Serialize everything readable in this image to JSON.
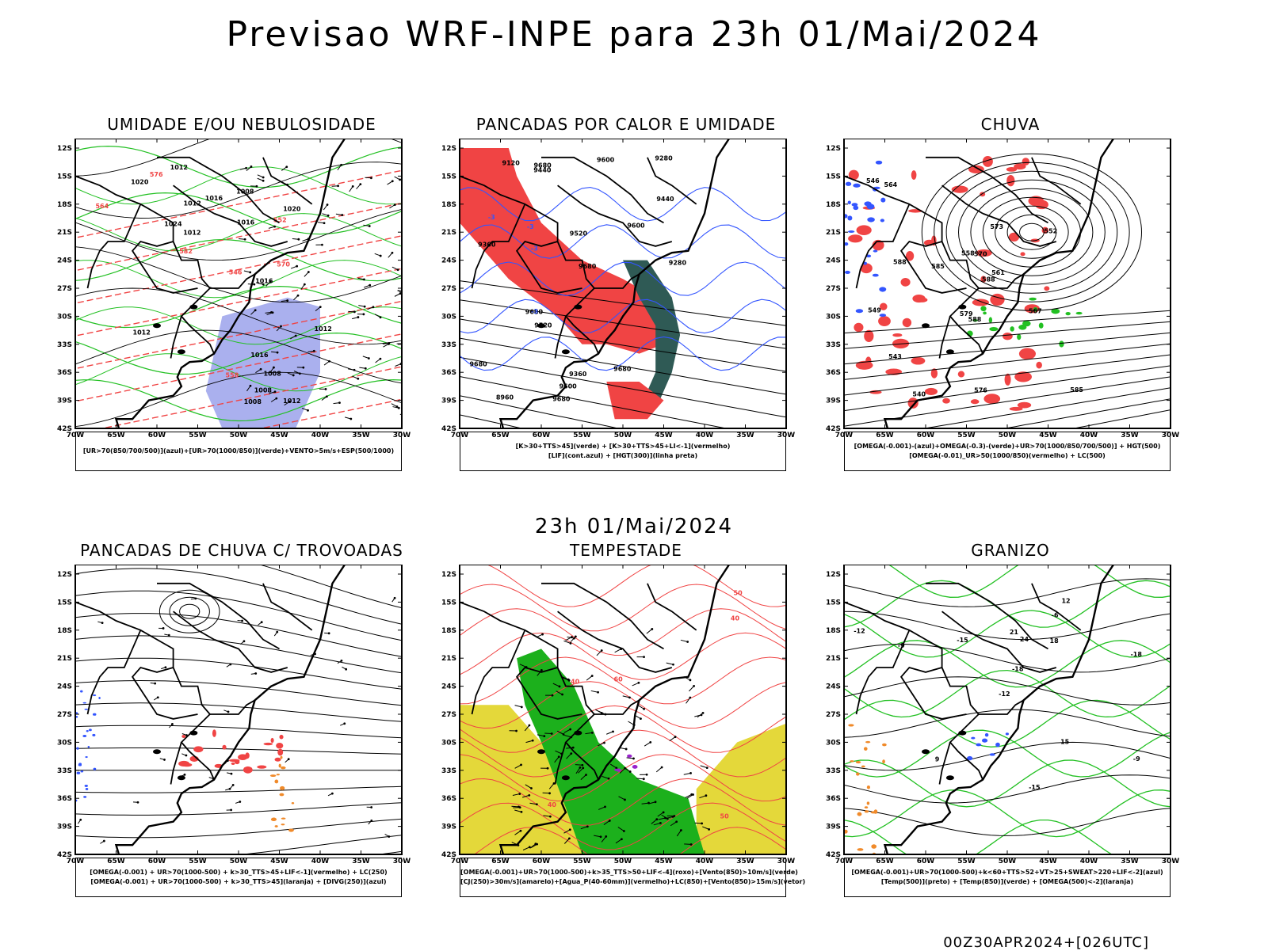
{
  "title": "Previsao WRF-INPE  para 23h 01/Mai/2024",
  "mid_date": "23h 01/Mai/2024",
  "footer": "00Z30APR2024+[026UTC]",
  "lat_ticks": [
    "12S",
    "15S",
    "18S",
    "21S",
    "24S",
    "27S",
    "30S",
    "33S",
    "36S",
    "39S",
    "42S"
  ],
  "lon_ticks": [
    "70W",
    "65W",
    "60W",
    "55W",
    "50W",
    "45W",
    "40W",
    "35W",
    "30W"
  ],
  "colors": {
    "green": "#22c022",
    "red": "#f04444",
    "blue": "#3355ff",
    "lavender": "#aab0ee",
    "dark_teal": "#2f5a55",
    "yellow": "#e4d83a",
    "orange": "#f08a2a",
    "purple": "#9922cc"
  },
  "panels": [
    {
      "id": "umidade",
      "title": "UMIDADE E/OU NEBULOSIDADE",
      "legend": [
        "[UR>70(850/700/500)](azul)+[UR>70(1000/850)](verde)+VENTO>5m/s+ESP(500/1000)"
      ],
      "contour_labels": [
        "1012",
        "1012",
        "1012",
        "1016",
        "1016",
        "1008",
        "1012",
        "1016",
        "1020",
        "1008",
        "1008",
        "1012",
        "1016",
        "1020",
        "1024",
        "1012",
        "1008",
        "546",
        "552",
        "558",
        "564",
        "570",
        "576",
        "582"
      ]
    },
    {
      "id": "pancadas_calor",
      "title": "PANCADAS POR CALOR E UMIDADE",
      "legend": [
        "[K>30+TTS>45](verde) + [K>30+TTS>45+LI<-1](vermelho)",
        "[LIF](cont.azul) + [HGT(300)](linha preta)"
      ],
      "contour_labels": [
        "9680",
        "9680",
        "9680",
        "9680",
        "9680",
        "9680",
        "9600",
        "9600",
        "9520",
        "9440",
        "9360",
        "9280",
        "9120",
        "8960",
        "9600",
        "9520",
        "9440",
        "9360",
        "9280",
        "-3",
        "-3",
        "-3",
        "-3"
      ]
    },
    {
      "id": "chuva",
      "title": "CHUVA",
      "legend": [
        "[OMEGA(-0.001)-(azul)+OMEGA(-0.3)-(verde)+UR>70(1000/850/700/500)] + HGT(500)",
        "[OMEGA(-0.01)_UR>50(1000/850)(vermelho) + LC(500)"
      ],
      "contour_labels": [
        "588",
        "588",
        "588",
        "585",
        "585",
        "579",
        "576",
        "573",
        "570",
        "567",
        "564",
        "561",
        "558",
        "552",
        "549",
        "546",
        "543",
        "540"
      ]
    },
    {
      "id": "pancadas_trovoadas",
      "title": "PANCADAS DE CHUVA C/ TROVOADAS",
      "legend": [
        "[OMEGA(-0.001) + UR>70(1000-500) + k>30_TTS>45+LIF<-1](vermelho) + LC(250)",
        "[OMEGA(-0.001) + UR>70(1000-500) + k>30_TTS>45](laranja) + [DIVG(250)](azul)"
      ],
      "contour_labels": []
    },
    {
      "id": "tempestade",
      "title": "TEMPESTADE",
      "legend": [
        "[OMEGA(-0.001)+UR>70(1000-500)+k>35_TTS>50+LIF<-4](roxo)+[Vento(850)>10m/s](verde)",
        "[CJ(250)>30m/s](amarelo)+[Agua_P(40-60mm)](vermelho)+LC(850)+[Vento(850)>15m/s](vetor)"
      ],
      "contour_labels": [
        "40",
        "40",
        "40",
        "50",
        "50",
        "60"
      ]
    },
    {
      "id": "granizo",
      "title": "GRANIZO",
      "legend": [
        "[OMEGA(-0.001)+UR>70(1000-500)+k<60+TTS>52+VT>25+SWEAT>220+LIF<-2](azul)",
        "[Temp(500)](preto) + [Temp(850)](verde) + [OMEGA(500)<-2](laranja)"
      ],
      "contour_labels": [
        "-9",
        "-12",
        "-15",
        "-18",
        "-6",
        "-9",
        "-12",
        "-15",
        "-18",
        "21",
        "24",
        "18",
        "15",
        "12",
        "9"
      ]
    }
  ]
}
